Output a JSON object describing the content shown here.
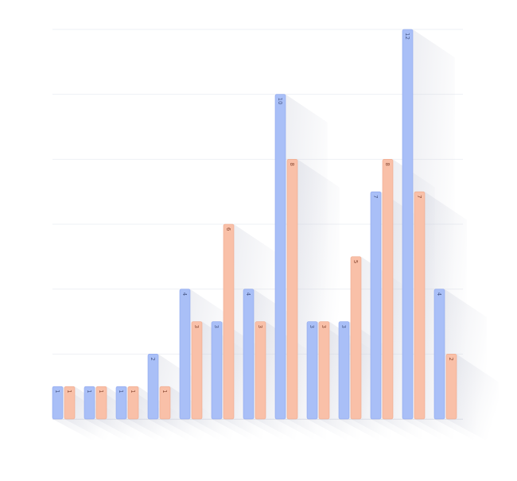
{
  "chart_data": {
    "type": "bar",
    "title": "",
    "xlabel": "",
    "ylabel": "",
    "ylim": [
      0,
      12
    ],
    "grid": true,
    "legend": "none",
    "categories": [
      "",
      "",
      "",
      "",
      "",
      "",
      "",
      "",
      "",
      "",
      "",
      "",
      ""
    ],
    "series": [
      {
        "color": "#a9bff7",
        "values": [
          1,
          1,
          1,
          2,
          4,
          3,
          4,
          10,
          3,
          3,
          7,
          12,
          4
        ]
      },
      {
        "color": "#f9c0a8",
        "values": [
          1,
          1,
          1,
          1,
          3,
          6,
          3,
          8,
          3,
          5,
          8,
          7,
          2
        ]
      }
    ]
  }
}
